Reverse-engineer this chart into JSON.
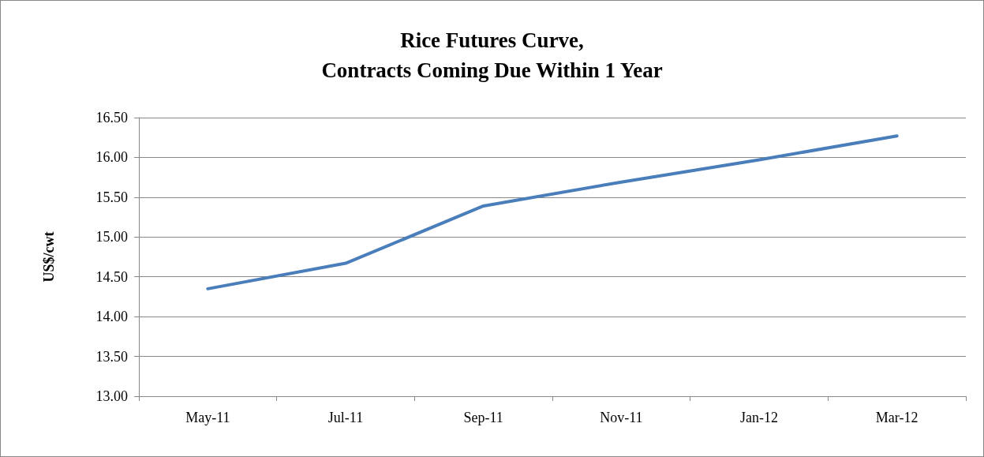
{
  "chart_data": {
    "type": "line",
    "title": "Rice Futures Curve,\nContracts Coming Due Within 1 Year",
    "ylabel": "US$/cwt",
    "categories": [
      "May-11",
      "Jul-11",
      "Sep-11",
      "Nov-11",
      "Jan-12",
      "Mar-12"
    ],
    "series": [
      {
        "color": "#4a7ebb",
        "values": [
          14.35,
          14.67,
          15.39,
          15.69,
          15.97,
          16.27
        ]
      }
    ],
    "ylim": [
      13,
      16.5
    ],
    "yticks": [
      {
        "value": 13,
        "label": "13.00"
      },
      {
        "value": 13.5,
        "label": "13.50"
      },
      {
        "value": 14,
        "label": "14.00"
      },
      {
        "value": 14.5,
        "label": "14.50"
      },
      {
        "value": 15,
        "label": "15.00"
      },
      {
        "value": 15.5,
        "label": "15.50"
      },
      {
        "value": 16,
        "label": "16.00"
      },
      {
        "value": 16.5,
        "label": "16.50"
      }
    ],
    "grid": "y",
    "marker": "none",
    "line_style": "solid"
  }
}
